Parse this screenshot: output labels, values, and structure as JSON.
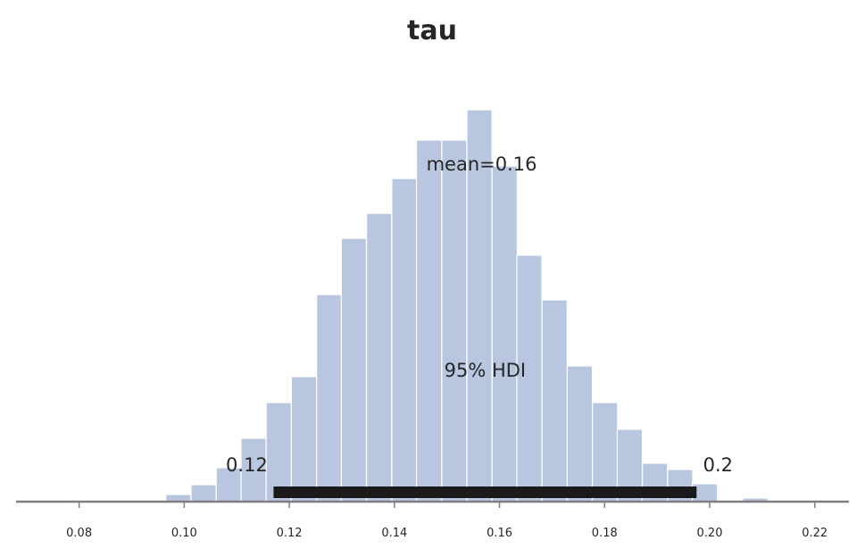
{
  "chart_data": {
    "type": "bar",
    "title": "tau",
    "xlabel": "",
    "ylabel": "",
    "xlim": [
      0.068,
      0.2265
    ],
    "xticks": [
      0.08,
      0.1,
      0.12,
      0.14,
      0.16,
      0.18,
      0.2,
      0.22
    ],
    "xtick_labels": [
      "0.08",
      "0.10",
      "0.12",
      "0.14",
      "0.16",
      "0.18",
      "0.20",
      "0.22"
    ],
    "bin_width": 0.004772,
    "bins": [
      {
        "x0": 0.087,
        "count": 1
      },
      {
        "x0": 0.0917,
        "count": 0
      },
      {
        "x0": 0.0965,
        "count": 8
      },
      {
        "x0": 0.1013,
        "count": 19
      },
      {
        "x0": 0.1061,
        "count": 38
      },
      {
        "x0": 0.1108,
        "count": 71
      },
      {
        "x0": 0.1156,
        "count": 111
      },
      {
        "x0": 0.1204,
        "count": 140
      },
      {
        "x0": 0.1252,
        "count": 232
      },
      {
        "x0": 0.1299,
        "count": 295
      },
      {
        "x0": 0.1347,
        "count": 323
      },
      {
        "x0": 0.1395,
        "count": 362
      },
      {
        "x0": 0.1442,
        "count": 405
      },
      {
        "x0": 0.149,
        "count": 405
      },
      {
        "x0": 0.1538,
        "count": 439
      },
      {
        "x0": 0.1586,
        "count": 376
      },
      {
        "x0": 0.1633,
        "count": 276
      },
      {
        "x0": 0.1681,
        "count": 226
      },
      {
        "x0": 0.1729,
        "count": 152
      },
      {
        "x0": 0.1777,
        "count": 111
      },
      {
        "x0": 0.1824,
        "count": 81
      },
      {
        "x0": 0.1872,
        "count": 43
      },
      {
        "x0": 0.192,
        "count": 36
      },
      {
        "x0": 0.1967,
        "count": 20
      },
      {
        "x0": 0.2015,
        "count": 0
      },
      {
        "x0": 0.2063,
        "count": 4
      }
    ],
    "ylim": [
      0,
      470
    ],
    "mean": 0.16,
    "mean_label": "mean=0.16",
    "hdi_label": "95% HDI",
    "hdi_low": 0.117,
    "hdi_high": 0.1975,
    "hdi_low_label": "0.12",
    "hdi_high_label": "0.2",
    "colors": {
      "bar_fill": "#b8c6df",
      "bar_edge": "#ffffff",
      "hdi_bar": "#1a1a1a",
      "axis": "#7f7f7f",
      "text": "#262626"
    }
  }
}
